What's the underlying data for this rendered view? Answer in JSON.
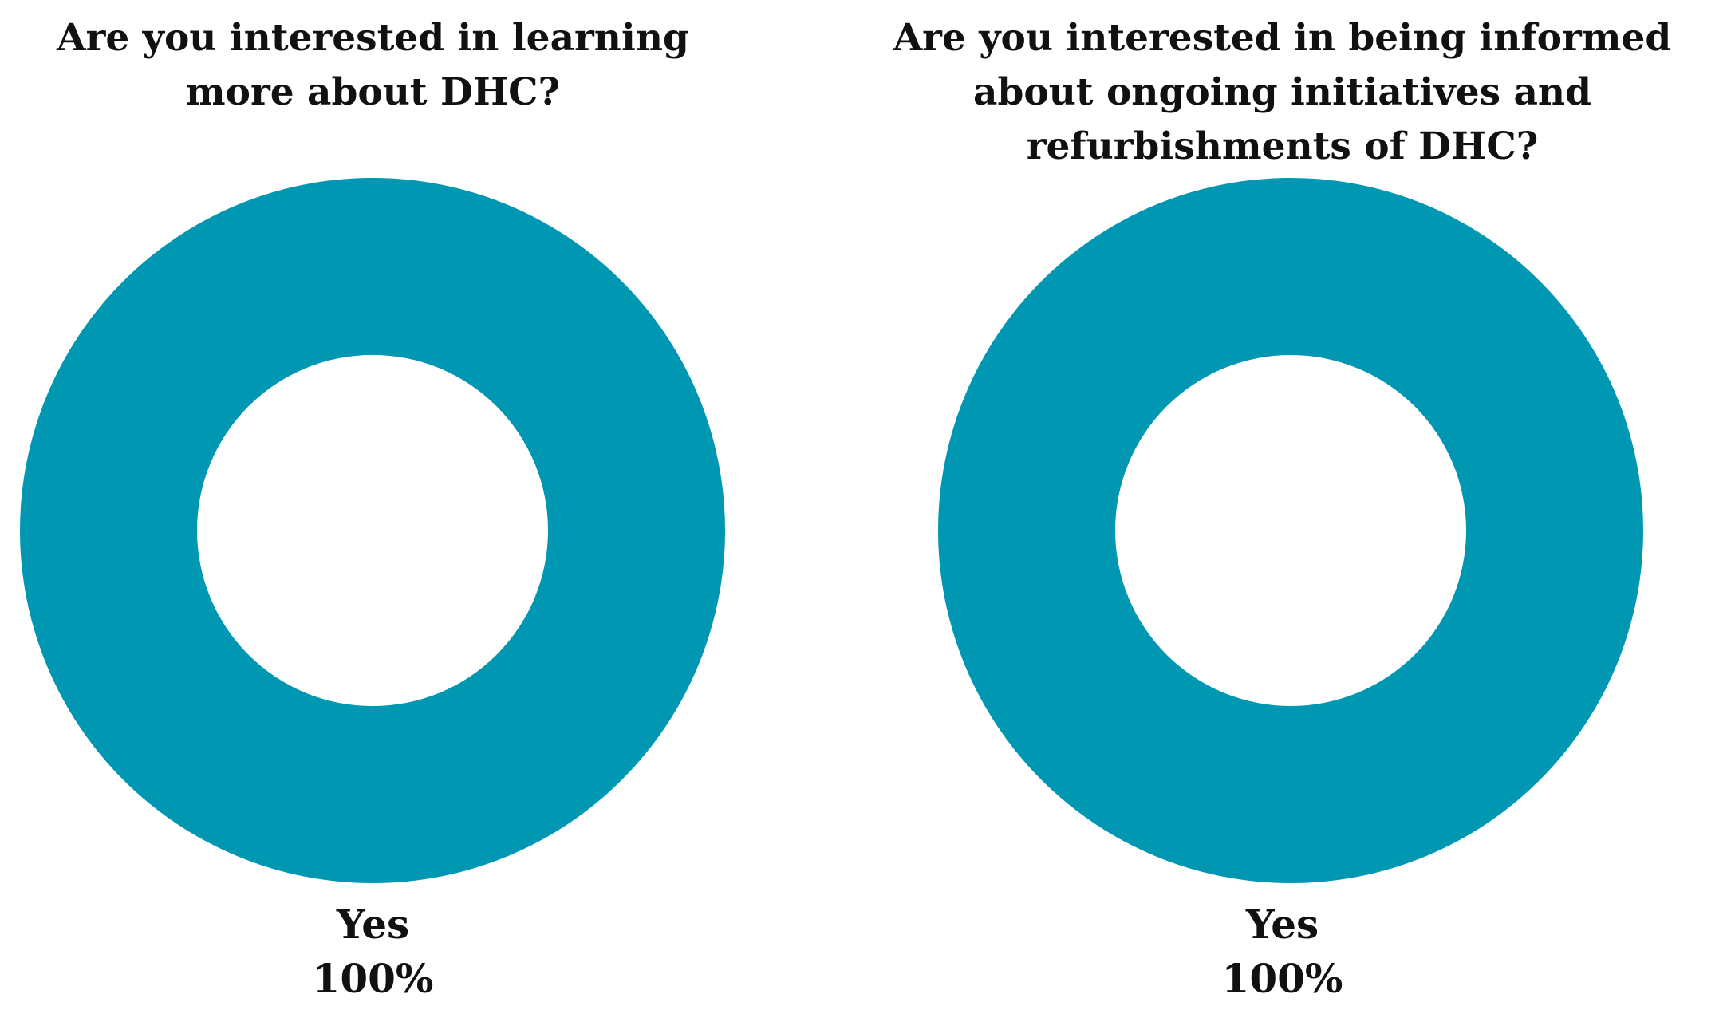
{
  "chart_data": [
    {
      "type": "pie",
      "title": "Are you interested in learning more about DHC?",
      "categories": [
        "Yes"
      ],
      "values": [
        100
      ],
      "labels": [
        {
          "name": "Yes",
          "percent": "100%"
        }
      ],
      "colors": [
        "#0097B2"
      ],
      "legend": "none"
    },
    {
      "type": "pie",
      "title": "Are you interested in being informed about ongoing initiatives and refurbishments of DHC?",
      "categories": [
        "Yes"
      ],
      "values": [
        100
      ],
      "labels": [
        {
          "name": "Yes",
          "percent": "100%"
        }
      ],
      "colors": [
        "#0097B2"
      ],
      "legend": "none"
    }
  ]
}
